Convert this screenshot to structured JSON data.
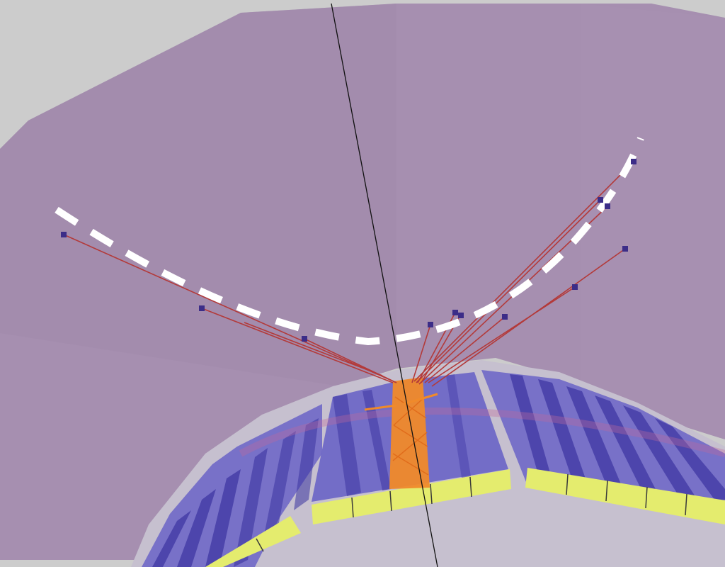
{
  "scene": {
    "background": "#ffffff",
    "frame_color": "#cccccc",
    "outer_volume_color": "#a68fb0",
    "inner_ring_color": "#c9c4d2",
    "calorimeter_cell_color": "#6f68c6",
    "calorimeter_edge_color": "#3a33a0",
    "endcap_color": "#e4ec6e",
    "track_color": "#b33a3a",
    "hit_color": "#3c2d88",
    "jet_color": "#f08a2a",
    "muon_path_color": "#ffffff",
    "axis_line_color": "#111111",
    "icons": [
      "track-hit-marker",
      "calorimeter-cell",
      "dashed-muon-trajectory",
      "beam-axis"
    ]
  }
}
